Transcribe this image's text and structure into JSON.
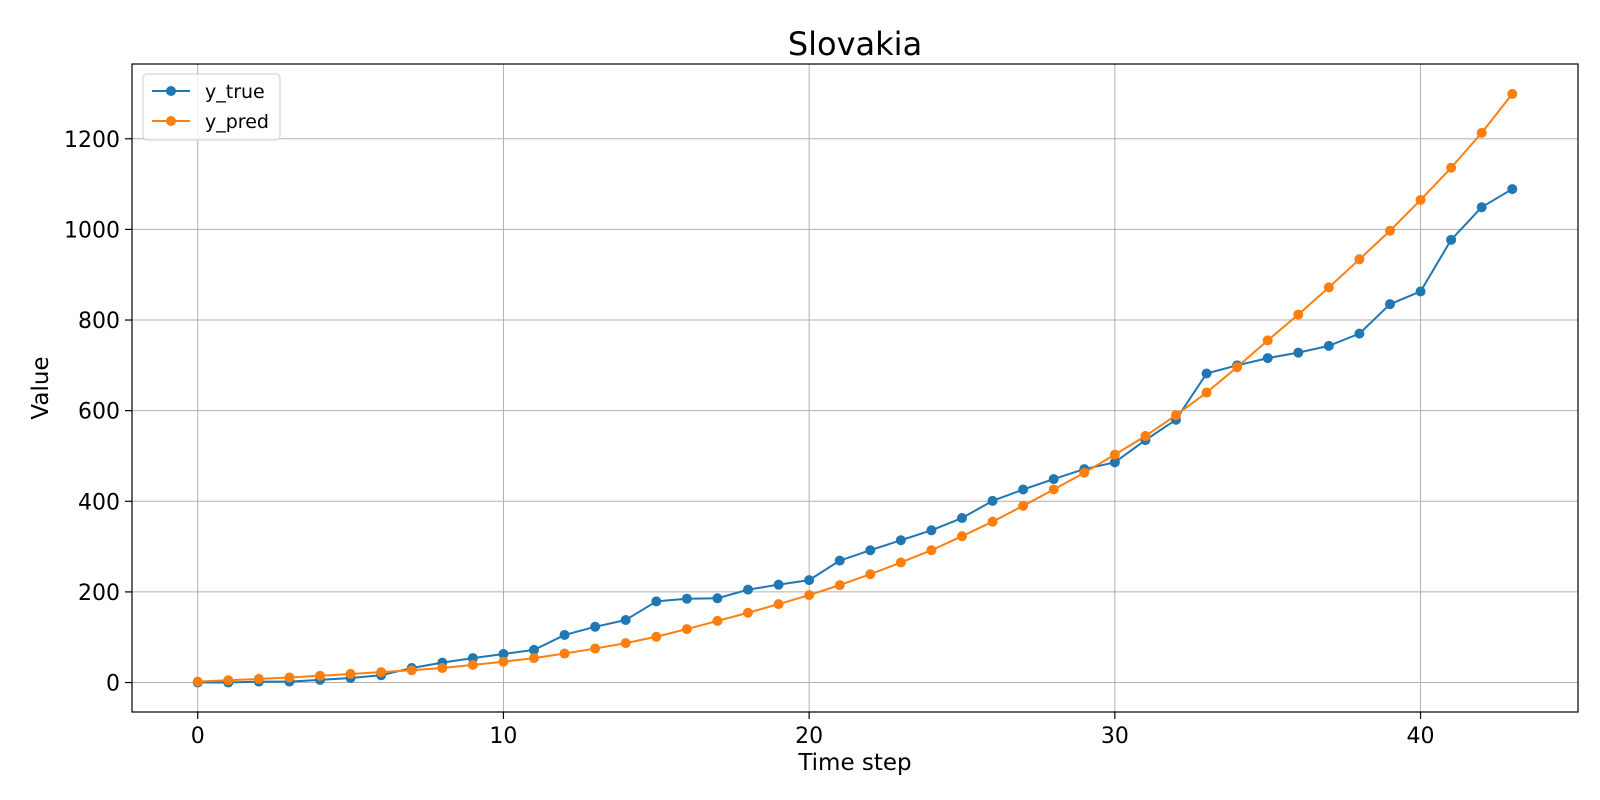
{
  "chart_data": {
    "type": "line",
    "title": "Slovakia",
    "xlabel": "Time step",
    "ylabel": "Value",
    "xlim": [
      -2.15,
      45.15
    ],
    "ylim": [
      -65,
      1365
    ],
    "xticks": [
      0,
      10,
      20,
      30,
      40
    ],
    "yticks": [
      0,
      200,
      400,
      600,
      800,
      1000,
      1200
    ],
    "grid": true,
    "legend_position": "top-left",
    "x": [
      0,
      1,
      2,
      3,
      4,
      5,
      6,
      7,
      8,
      9,
      10,
      11,
      12,
      13,
      14,
      15,
      16,
      17,
      18,
      19,
      20,
      21,
      22,
      23,
      24,
      25,
      26,
      27,
      28,
      29,
      30,
      31,
      32,
      33,
      34,
      35,
      36,
      37,
      38,
      39,
      40,
      41,
      42,
      43
    ],
    "series": [
      {
        "name": "y_true",
        "color": "#1f77b4",
        "values": [
          0,
          0,
          2,
          2,
          6,
          10,
          16,
          32,
          44,
          54,
          63,
          72,
          105,
          123,
          138,
          179,
          185,
          186,
          205,
          216,
          226,
          269,
          292,
          314,
          336,
          363,
          401,
          426,
          449,
          471,
          486,
          535,
          580,
          682,
          700,
          716,
          728,
          743,
          770,
          835,
          863,
          977,
          1049,
          1089
        ]
      },
      {
        "name": "y_pred",
        "color": "#ff7f0e",
        "values": [
          2,
          5,
          8,
          11,
          15,
          19,
          23,
          27,
          32,
          39,
          46,
          54,
          64,
          75,
          87,
          101,
          118,
          136,
          154,
          173,
          193,
          215,
          239,
          265,
          292,
          323,
          355,
          390,
          426,
          463,
          503,
          544,
          590,
          640,
          696,
          755,
          812,
          872,
          934,
          997,
          1065,
          1136,
          1213,
          1299
        ]
      }
    ]
  }
}
